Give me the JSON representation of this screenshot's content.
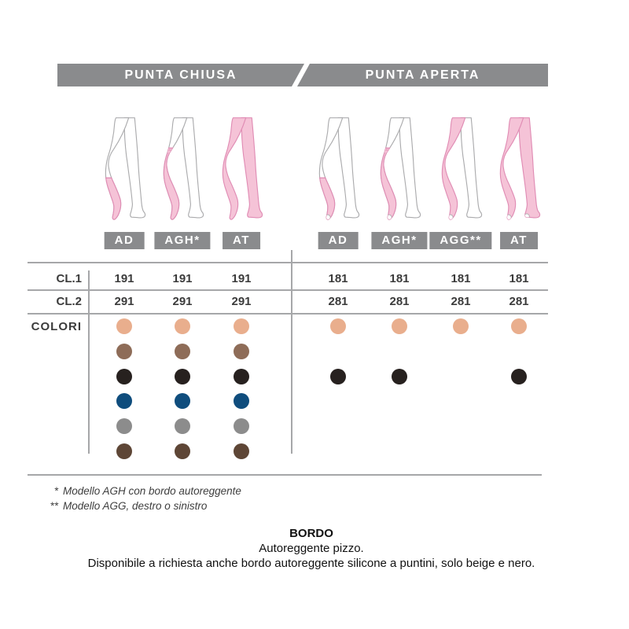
{
  "header": {
    "left_tab": "PUNTA CHIUSA",
    "right_tab": "PUNTA APERTA"
  },
  "row_labels": {
    "cl1": "CL.1",
    "cl2": "CL.2",
    "colori": "COLORI"
  },
  "palette": {
    "bar_gray": "#8A8B8D",
    "line_gray": "#A6A7A9",
    "text_dark": "#3B3B3B",
    "pink": "#F5C3D7",
    "pink_dark": "#E08CB4",
    "leg_outline": "#ABABAD"
  },
  "color_dots": {
    "beige": "#E9AE8D",
    "brown": "#8E6C58",
    "black": "#27211F",
    "navy": "#0F4D7D",
    "gray": "#8C8C8C",
    "darkbrown": "#5E4636"
  },
  "groups": [
    {
      "name": "PUNTA CHIUSA",
      "toe": "closed",
      "columns": [
        {
          "label": "AD",
          "model": "ad",
          "cl1": "191",
          "cl2": "291",
          "dots": [
            "beige",
            "brown",
            "black",
            "navy",
            "gray",
            "darkbrown"
          ]
        },
        {
          "label": "AGH*",
          "model": "agh",
          "cl1": "191",
          "cl2": "291",
          "dots": [
            "beige",
            "brown",
            "black",
            "navy",
            "gray",
            "darkbrown"
          ]
        },
        {
          "label": "AT",
          "model": "at",
          "cl1": "191",
          "cl2": "291",
          "dots": [
            "beige",
            "brown",
            "black",
            "navy",
            "gray",
            "darkbrown"
          ]
        }
      ]
    },
    {
      "name": "PUNTA APERTA",
      "toe": "open",
      "columns": [
        {
          "label": "AD",
          "model": "ad",
          "cl1": "181",
          "cl2": "281",
          "dots": [
            "beige",
            null,
            "black",
            null,
            null,
            null
          ]
        },
        {
          "label": "AGH*",
          "model": "agh",
          "cl1": "181",
          "cl2": "281",
          "dots": [
            "beige",
            null,
            "black",
            null,
            null,
            null
          ]
        },
        {
          "label": "AGG**",
          "model": "agg",
          "cl1": "181",
          "cl2": "281",
          "dots": [
            "beige",
            null,
            null,
            null,
            null,
            null
          ]
        },
        {
          "label": "AT",
          "model": "at",
          "cl1": "181",
          "cl2": "281",
          "dots": [
            "beige",
            null,
            "black",
            null,
            null,
            null
          ]
        }
      ]
    }
  ],
  "footnotes": [
    {
      "marker": "*",
      "text": "Modello AGH con bordo autoreggente"
    },
    {
      "marker": "**",
      "text": "Modello AGG, destro o sinistro"
    }
  ],
  "bordo": {
    "title": "BORDO",
    "line1": "Autoreggente pizzo.",
    "line2": "Disponibile a richiesta anche bordo autoreggente silicone a puntini, solo beige e nero."
  }
}
